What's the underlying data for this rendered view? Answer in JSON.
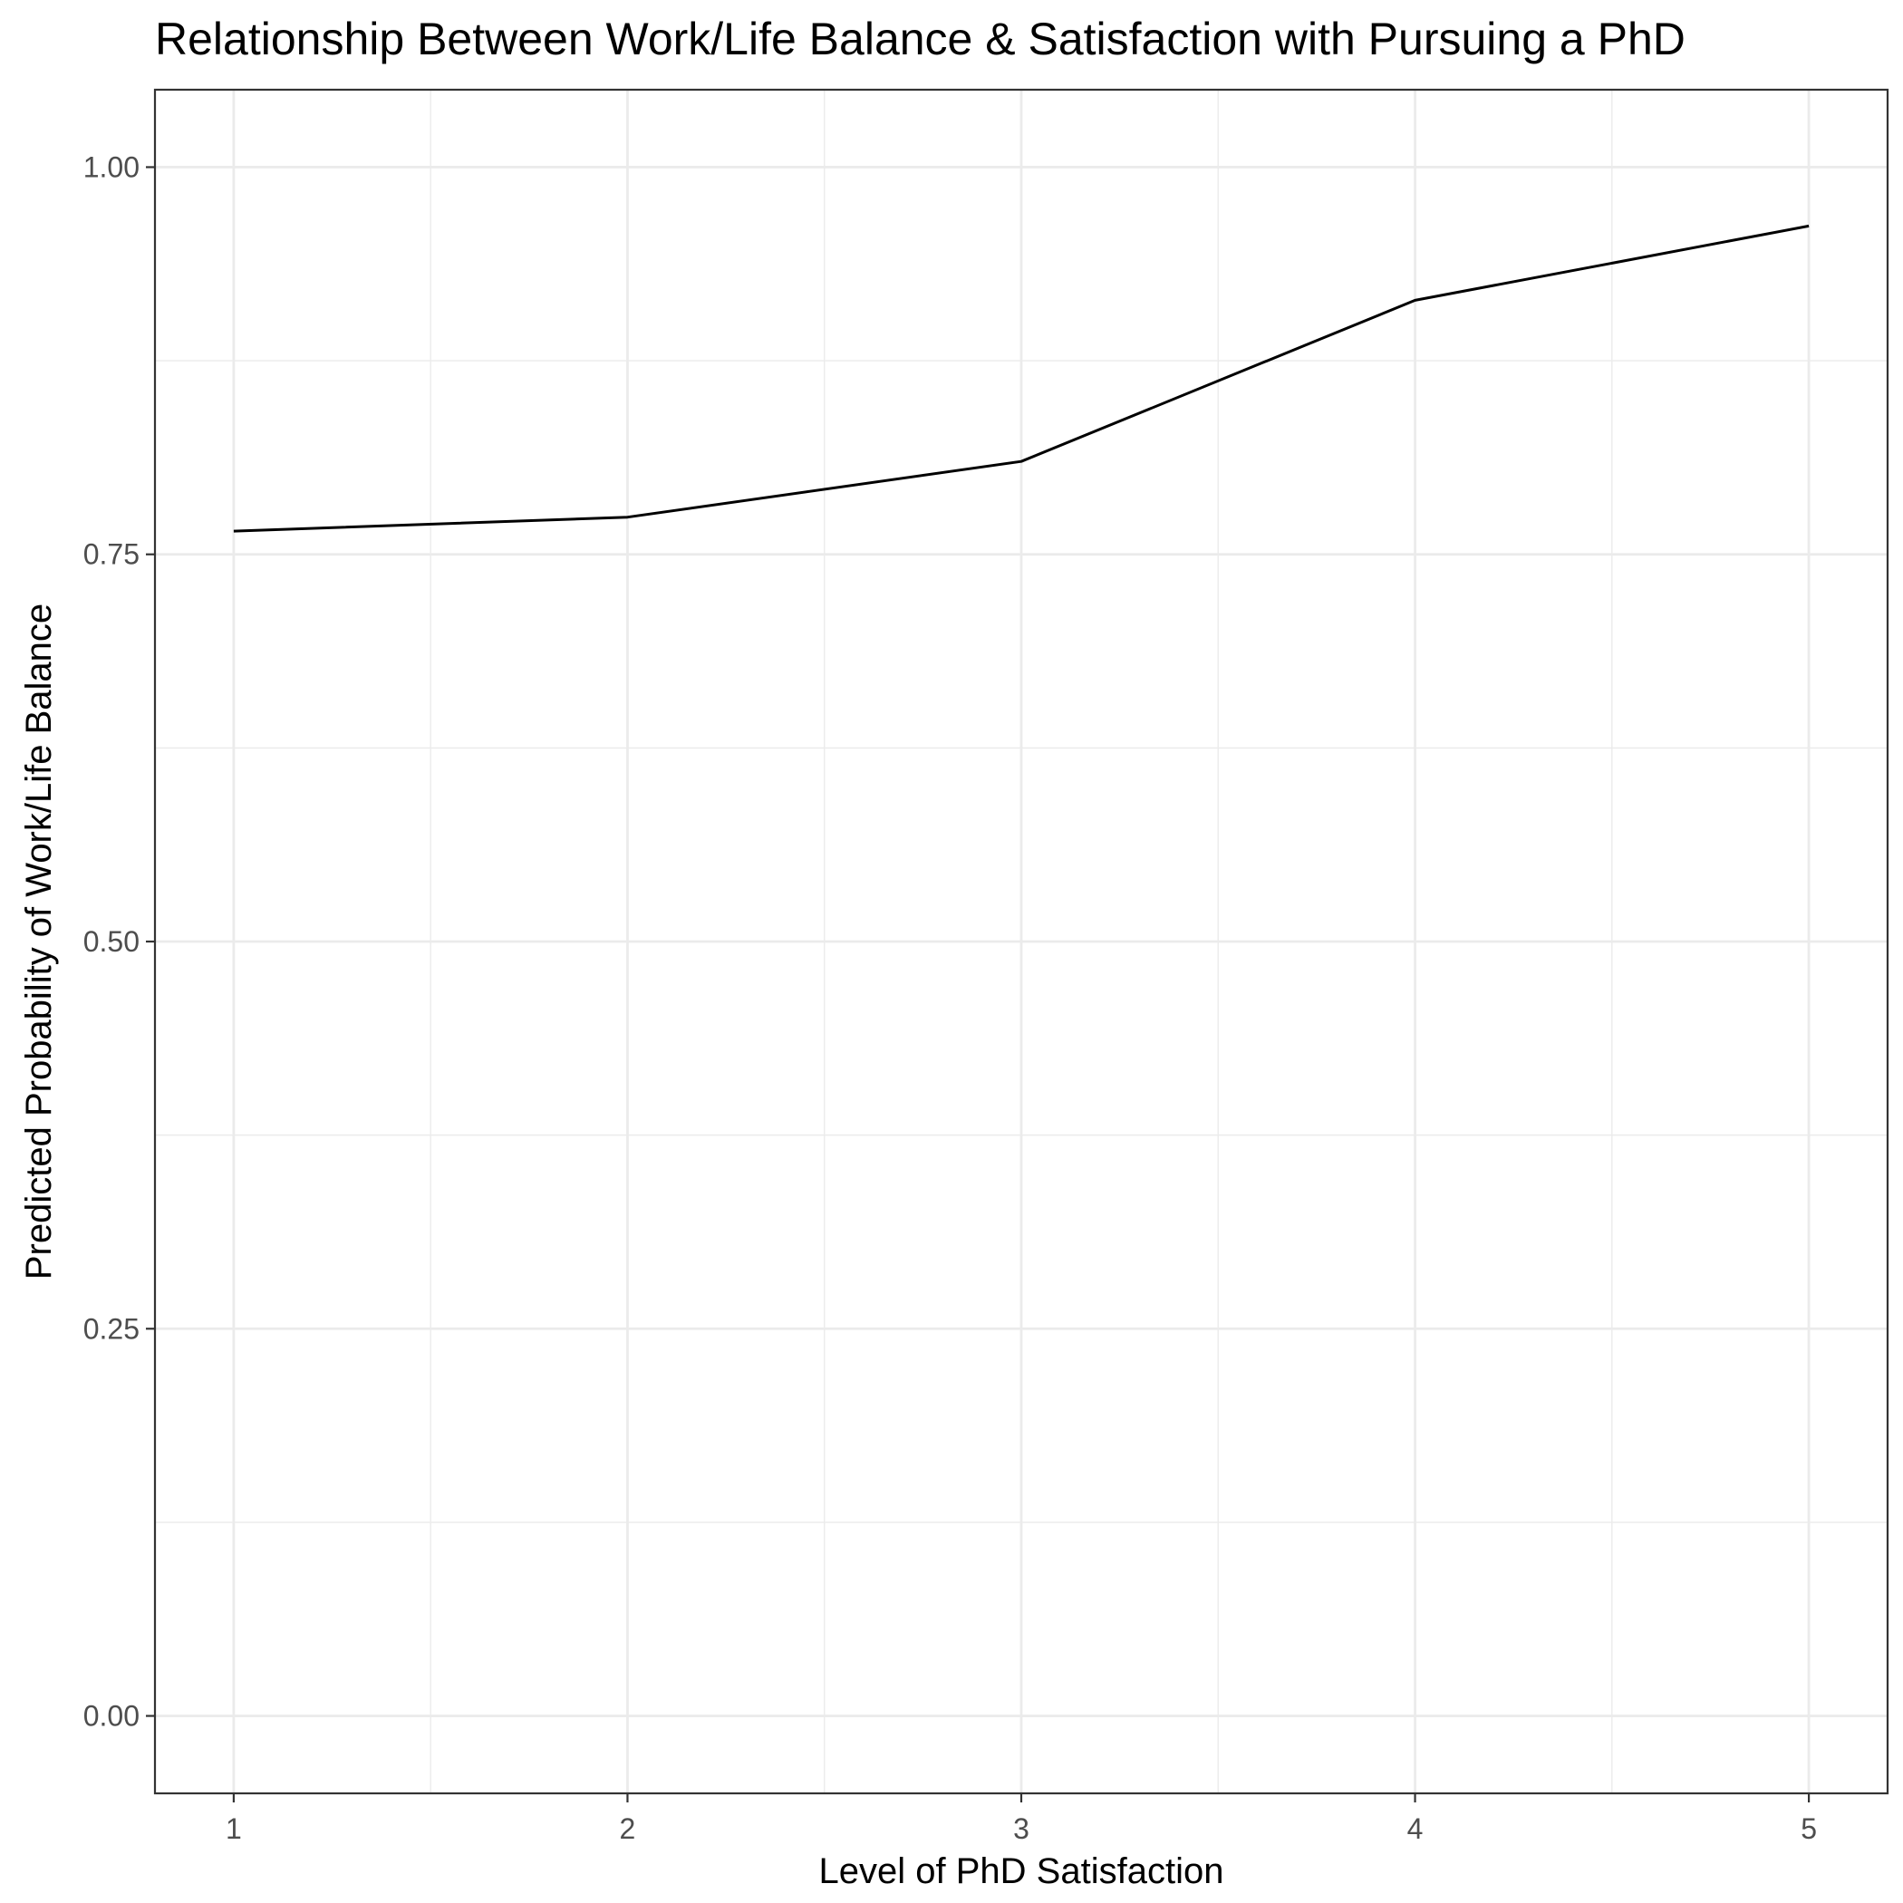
{
  "chart_data": {
    "type": "line",
    "title": "Relationship Between Work/Life Balance & Satisfaction with Pursuing a PhD",
    "xlabel": "Level of PhD Satisfaction",
    "ylabel": "Predicted Probability of Work/Life Balance",
    "x": [
      1,
      2,
      3,
      4,
      5
    ],
    "series": [
      {
        "values": [
          0.765,
          0.774,
          0.81,
          0.914,
          0.962
        ]
      }
    ],
    "xlim": [
      0.8,
      5.2
    ],
    "ylim": [
      -0.05,
      1.05
    ],
    "x_ticks": [
      1,
      2,
      3,
      4,
      5
    ],
    "x_tick_labels": [
      "1",
      "2",
      "3",
      "4",
      "5"
    ],
    "y_ticks": [
      0,
      0.25,
      0.5,
      0.75,
      1
    ],
    "y_tick_labels": [
      "0.00",
      "0.25",
      "0.50",
      "0.75",
      "1.00"
    ],
    "grid": true,
    "line_color": "#000000",
    "background": "#ffffff"
  }
}
